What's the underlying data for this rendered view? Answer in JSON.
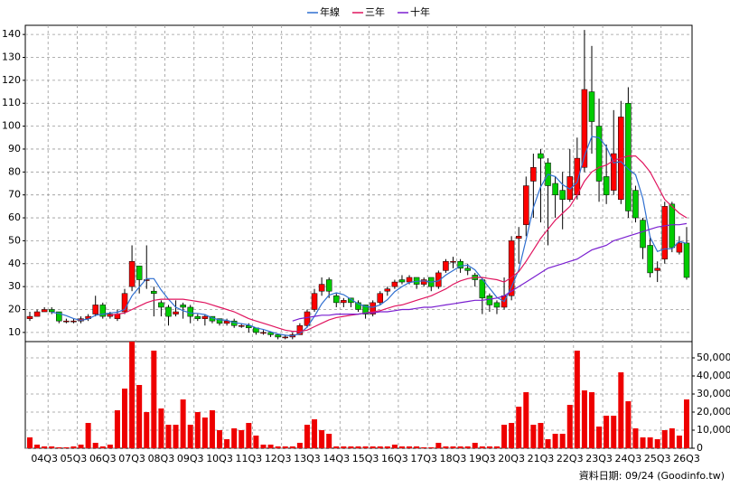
{
  "chart_data": {
    "type": "candlestick",
    "footnote": "資料日期: 09/24  (Goodinfo.tw)",
    "categories": [
      null,
      null,
      "04Q3",
      null,
      null,
      null,
      "05Q3",
      null,
      null,
      null,
      "06Q3",
      null,
      null,
      null,
      "07Q3",
      null,
      null,
      null,
      "08Q3",
      null,
      null,
      null,
      "09Q3",
      null,
      null,
      null,
      "10Q3",
      null,
      null,
      null,
      "11Q3",
      null,
      null,
      null,
      "12Q3",
      null,
      null,
      null,
      "13Q3",
      null,
      null,
      null,
      "14Q3",
      null,
      null,
      null,
      "15Q3",
      null,
      null,
      null,
      "16Q3",
      null,
      null,
      null,
      "17Q3",
      null,
      null,
      null,
      "18Q3",
      null,
      null,
      null,
      "19Q3",
      null,
      null,
      null,
      "20Q3",
      null,
      null,
      null,
      "21Q3",
      null,
      null,
      null,
      "22Q3",
      null,
      null,
      null,
      "23Q3",
      null,
      null,
      null,
      "24Q3",
      null,
      null,
      null,
      "25Q3",
      null,
      null,
      null,
      "26Q3"
    ],
    "open": [
      16,
      17,
      19,
      20,
      19,
      15,
      15,
      15,
      16,
      18,
      22,
      17,
      16,
      19,
      30,
      39,
      33,
      28,
      23,
      21,
      18,
      22,
      21,
      17,
      16,
      17,
      16,
      14,
      15,
      13,
      13,
      12,
      10,
      10,
      9,
      8,
      8,
      9,
      13,
      20,
      28,
      33,
      26,
      23,
      25,
      23,
      22,
      18,
      23,
      28,
      30,
      33,
      32,
      34,
      31,
      34,
      30,
      37,
      41,
      41,
      38,
      35,
      33,
      26,
      23,
      21,
      26,
      51,
      57,
      76,
      88,
      84,
      75,
      72,
      68,
      70,
      82,
      115,
      100,
      78,
      72,
      68,
      110,
      72,
      59,
      48,
      37,
      42,
      66,
      45,
      49
    ],
    "high": [
      19,
      20,
      21,
      21,
      19,
      16,
      16,
      17,
      18,
      26,
      23,
      19,
      20,
      29,
      48,
      39,
      48,
      30,
      24,
      22,
      24,
      23,
      22,
      18,
      18,
      17,
      16,
      16,
      16,
      14,
      14,
      12,
      11,
      10,
      9,
      9,
      10,
      14,
      20,
      29,
      34,
      34,
      27,
      25,
      25,
      24,
      22,
      24,
      28,
      30,
      33,
      35,
      35,
      34,
      34,
      34,
      37,
      42,
      43,
      42,
      40,
      36,
      34,
      27,
      24,
      34,
      52,
      56,
      78,
      88,
      90,
      86,
      78,
      80,
      90,
      95,
      142,
      135,
      112,
      92,
      107,
      111,
      117,
      74,
      60,
      52,
      41,
      67,
      67,
      52,
      56
    ],
    "low": [
      15,
      17,
      19,
      18,
      14,
      14,
      14,
      14,
      15,
      17,
      16,
      16,
      15,
      18,
      28,
      27,
      29,
      17,
      17,
      13,
      17,
      16,
      14,
      15,
      13,
      14,
      13,
      13,
      12,
      12,
      10,
      9,
      9,
      8,
      7,
      7,
      7,
      9,
      12,
      19,
      26,
      25,
      21,
      21,
      21,
      19,
      16,
      17,
      22,
      26,
      29,
      31,
      31,
      29,
      30,
      28,
      29,
      36,
      38,
      36,
      35,
      30,
      18,
      19,
      18,
      20,
      24,
      40,
      52,
      60,
      58,
      48,
      60,
      55,
      67,
      68,
      80,
      88,
      67,
      66,
      70,
      66,
      60,
      58,
      42,
      34,
      32,
      40,
      45,
      44,
      33
    ],
    "close": [
      17,
      19,
      20,
      19,
      15,
      15,
      15,
      16,
      17,
      22,
      17,
      18,
      18,
      27,
      41,
      33,
      33,
      27,
      21,
      17,
      19,
      21,
      17,
      16,
      17,
      15,
      14,
      15,
      13,
      13,
      12,
      10,
      10,
      9,
      8,
      8,
      9,
      13,
      19,
      27,
      31,
      28,
      23,
      24,
      23,
      20,
      18,
      23,
      27,
      29,
      32,
      32,
      34,
      31,
      33,
      30,
      36,
      41,
      41,
      38,
      37,
      33,
      25,
      22,
      21,
      26,
      50,
      52,
      74,
      82,
      86,
      74,
      70,
      68,
      78,
      86,
      116,
      102,
      76,
      70,
      88,
      104,
      63,
      60,
      47,
      36,
      38,
      65,
      47,
      49,
      34
    ],
    "up_color": "#ff0000",
    "down_color": "#00cc00",
    "ylim": [
      6,
      144
    ],
    "yticks": [
      10,
      20,
      30,
      40,
      50,
      60,
      70,
      80,
      90,
      100,
      110,
      120,
      130,
      140
    ],
    "grid": true,
    "series": [
      {
        "name": "年線",
        "color": "#2f6fd0",
        "values": [
          null,
          null,
          null,
          18.8,
          18.3,
          17.3,
          16,
          15.3,
          15.8,
          17.5,
          18,
          18.5,
          18.8,
          20,
          26,
          29.8,
          33.5,
          33.5,
          28.5,
          24.5,
          21,
          19.5,
          18.5,
          18.3,
          17.8,
          16.3,
          15.5,
          15.3,
          14.3,
          13.8,
          13.3,
          12,
          11.3,
          10.3,
          9.3,
          8.8,
          8.5,
          9.5,
          12.3,
          17,
          22.5,
          26.3,
          27.3,
          26.5,
          24.5,
          22.5,
          21.3,
          21,
          22,
          24.3,
          27.8,
          30,
          31.8,
          32.3,
          32.5,
          32,
          32.5,
          35,
          37,
          39,
          39.3,
          37.3,
          33.3,
          29.3,
          25.3,
          23.5,
          29.8,
          37.3,
          50.5,
          64.5,
          73.5,
          79,
          78,
          74.5,
          72.5,
          75.5,
          87,
          95.5,
          95,
          91,
          84,
          84.5,
          81.3,
          78.8,
          68.5,
          51.5,
          45.3,
          46.5,
          46.5,
          49.8,
          48.8
        ]
      },
      {
        "name": "三年",
        "color": "#e0155f",
        "values": [
          null,
          null,
          null,
          null,
          null,
          null,
          null,
          null,
          null,
          null,
          null,
          17.5,
          18,
          18.5,
          20,
          21.5,
          23,
          24,
          24.5,
          24.5,
          24.5,
          24.5,
          24,
          23.5,
          23,
          22,
          21,
          20,
          19,
          17.5,
          16,
          15,
          14,
          13,
          12,
          11,
          10.5,
          10.5,
          11,
          12.5,
          14,
          15.5,
          16.5,
          17,
          17.5,
          18,
          18.5,
          19,
          19.5,
          20.5,
          21.5,
          22,
          23,
          24,
          25,
          26,
          27.5,
          29,
          31,
          32.5,
          33.5,
          34,
          34,
          33.5,
          33,
          32,
          34,
          36.5,
          41,
          46,
          51,
          55,
          59,
          62,
          65,
          70,
          76,
          80,
          82,
          83,
          85,
          86,
          87,
          87,
          84,
          80,
          74,
          68,
          65,
          62,
          60
        ]
      },
      {
        "name": "十年",
        "color": "#7a1fd0",
        "values": [
          null,
          null,
          null,
          null,
          null,
          null,
          null,
          null,
          null,
          null,
          null,
          null,
          null,
          null,
          null,
          null,
          null,
          null,
          null,
          null,
          null,
          null,
          null,
          null,
          null,
          null,
          null,
          null,
          null,
          null,
          null,
          null,
          null,
          null,
          null,
          null,
          15,
          16,
          16.5,
          17,
          17.5,
          17.5,
          18,
          18,
          18,
          18,
          18.5,
          18.5,
          19,
          19,
          19.5,
          20,
          20,
          20.5,
          21,
          21,
          21.5,
          22,
          22.5,
          23,
          23.5,
          24,
          24,
          24.5,
          25,
          26,
          28,
          30,
          32,
          34,
          36,
          38,
          39,
          40,
          41,
          42,
          44,
          46,
          47,
          48,
          50,
          51,
          52,
          53,
          54,
          55,
          56,
          56.5,
          57,
          57,
          57.5
        ]
      }
    ],
    "volume": {
      "values": [
        6000,
        2000,
        1000,
        1000,
        500,
        500,
        1000,
        2000,
        14000,
        3000,
        1000,
        2000,
        21000,
        33000,
        59000,
        35000,
        20000,
        54000,
        22000,
        13000,
        13000,
        27000,
        13000,
        20000,
        17000,
        21000,
        10000,
        5000,
        11000,
        10000,
        14000,
        7000,
        2000,
        2000,
        1000,
        1000,
        1000,
        3000,
        13000,
        16000,
        10000,
        8000,
        1000,
        1000,
        1000,
        1000,
        1000,
        1000,
        1000,
        1000,
        2000,
        1000,
        1000,
        1000,
        500,
        500,
        3000,
        1000,
        1000,
        1000,
        1000,
        3000,
        1000,
        1000,
        1000,
        13000,
        14000,
        23000,
        31000,
        13000,
        14000,
        5000,
        8000,
        8000,
        24000,
        54000,
        32000,
        31000,
        12000,
        18000,
        18000,
        42000,
        26000,
        11000,
        6000,
        6000,
        5000,
        10000,
        11000,
        7000,
        27000
      ],
      "color": "#ee0000",
      "ylim": [
        0,
        59000
      ],
      "yticks": [
        0,
        {
          "value": 10000,
          "label": "10,000"
        },
        {
          "value": 20000,
          "label": "20,000"
        },
        {
          "value": 30000,
          "label": "30,000"
        },
        {
          "value": 40000,
          "label": "40,000"
        },
        {
          "value": 50000,
          "label": "50,000"
        }
      ]
    }
  }
}
